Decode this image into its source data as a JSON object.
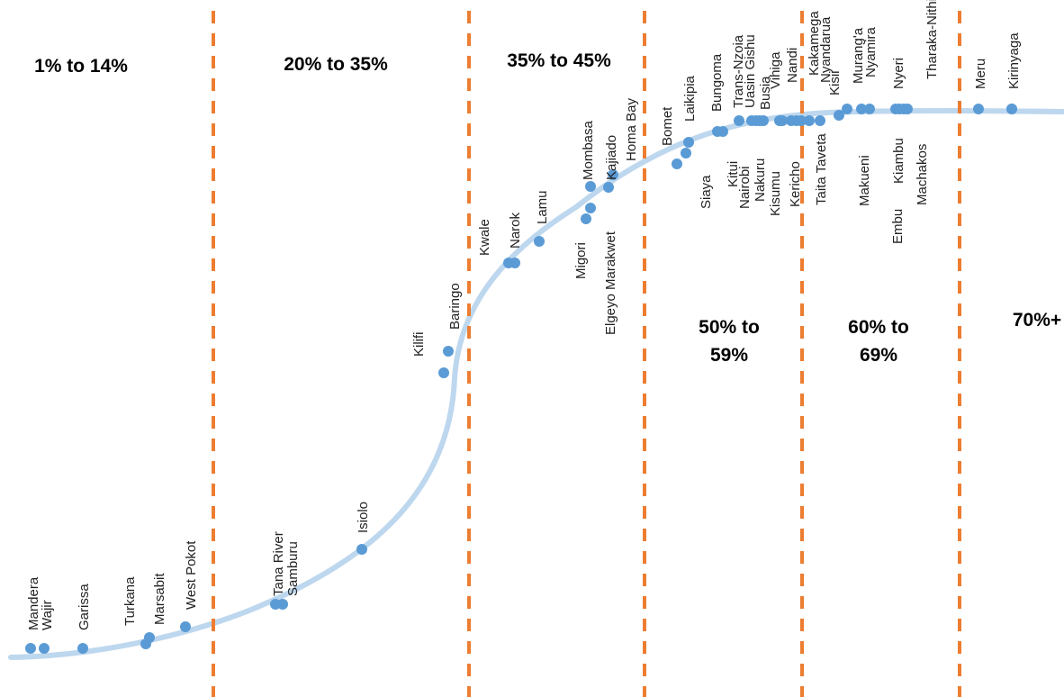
{
  "chart_data": {
    "type": "scatter",
    "title": "",
    "xlabel": "",
    "ylabel": "",
    "grid": false,
    "curve_color": "#bdd7ee",
    "point_color": "#5b9bd5",
    "divider_color": "#ed7d31",
    "bands": [
      {
        "lines": [
          "1% to 14%"
        ]
      },
      {
        "lines": [
          "20% to 35%"
        ]
      },
      {
        "lines": [
          "35% to 45%"
        ]
      },
      {
        "lines": [
          "50% to",
          "59%"
        ]
      },
      {
        "lines": [
          "60% to",
          "69%"
        ]
      },
      {
        "lines": [
          "70%+"
        ]
      }
    ],
    "counties": [
      {
        "name": "Mandera"
      },
      {
        "name": "Wajir"
      },
      {
        "name": "Garissa"
      },
      {
        "name": "Turkana"
      },
      {
        "name": "Marsabit"
      },
      {
        "name": "West Pokot"
      },
      {
        "name": "Tana River"
      },
      {
        "name": "Samburu"
      },
      {
        "name": "Isiolo"
      },
      {
        "name": "Kilifi"
      },
      {
        "name": "Baringo"
      },
      {
        "name": "Kwale"
      },
      {
        "name": "Narok"
      },
      {
        "name": "Lamu"
      },
      {
        "name": "Migori"
      },
      {
        "name": "Mombasa"
      },
      {
        "name": "Elgeyo Marakwet"
      },
      {
        "name": "Kajiado"
      },
      {
        "name": "Homa Bay"
      },
      {
        "name": "Bomet"
      },
      {
        "name": "Siaya"
      },
      {
        "name": "Laikipia"
      },
      {
        "name": "Bungoma"
      },
      {
        "name": "Kitui"
      },
      {
        "name": "Trans-Nzoia"
      },
      {
        "name": "Nairobi"
      },
      {
        "name": "Uasin Gishu"
      },
      {
        "name": "Nakuru"
      },
      {
        "name": "Busia"
      },
      {
        "name": "Kisumu"
      },
      {
        "name": "Vihiga"
      },
      {
        "name": "Kericho"
      },
      {
        "name": "Nandi"
      },
      {
        "name": "Kakamega"
      },
      {
        "name": "Taita Taveta"
      },
      {
        "name": "Nyandarua"
      },
      {
        "name": "Kisii"
      },
      {
        "name": "Murang'a"
      },
      {
        "name": "Makueni"
      },
      {
        "name": "Nyamira"
      },
      {
        "name": "Embu"
      },
      {
        "name": "Kiambu"
      },
      {
        "name": "Nyeri"
      },
      {
        "name": "Machakos"
      },
      {
        "name": "Tharaka-Nithi"
      },
      {
        "name": "Meru"
      },
      {
        "name": "Kirinyaga"
      }
    ]
  }
}
